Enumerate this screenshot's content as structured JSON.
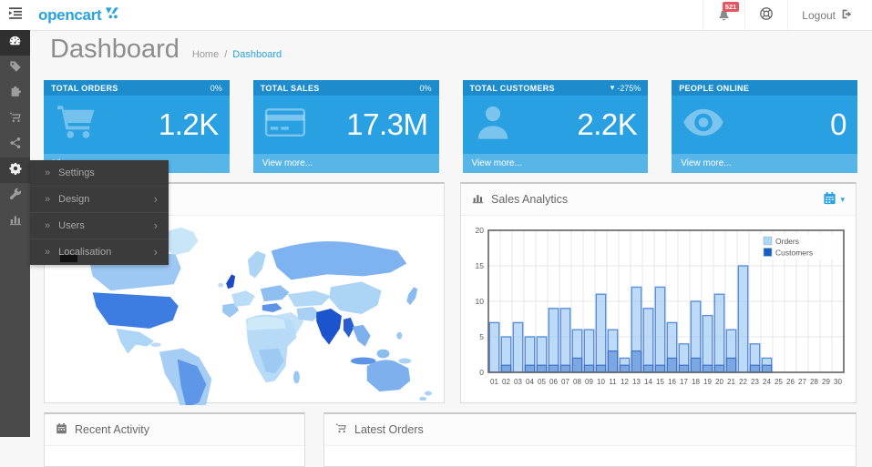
{
  "header": {
    "logo": "opencart",
    "notification_count": "521",
    "logout": "Logout"
  },
  "page": {
    "title": "Dashboard",
    "breadcrumb_home": "Home",
    "breadcrumb_sep": "/",
    "breadcrumb_current": "Dashboard"
  },
  "sidebar": {
    "items": [
      {
        "name": "dashboard",
        "icon": "dashboard-icon",
        "active": true
      },
      {
        "name": "catalog",
        "icon": "tag-icon"
      },
      {
        "name": "extensions",
        "icon": "puzzle-icon"
      },
      {
        "name": "sales",
        "icon": "cart-icon"
      },
      {
        "name": "marketing",
        "icon": "share-icon"
      },
      {
        "name": "system",
        "icon": "gear-icon",
        "expanded": true
      },
      {
        "name": "tools",
        "icon": "wrench-icon"
      },
      {
        "name": "reports",
        "icon": "bar-chart-icon"
      }
    ],
    "submenu": {
      "items": [
        {
          "label": "Settings",
          "has_children": false
        },
        {
          "label": "Design",
          "has_children": true
        },
        {
          "label": "Users",
          "has_children": true
        },
        {
          "label": "Localisation",
          "has_children": true
        }
      ]
    }
  },
  "tiles": [
    {
      "title": "TOTAL ORDERS",
      "percent": "0%",
      "value": "1.2K",
      "icon": "shopping-cart-icon",
      "view_more": "View more..."
    },
    {
      "title": "TOTAL SALES",
      "percent": "0%",
      "value": "17.3M",
      "icon": "credit-card-icon",
      "view_more": "View more..."
    },
    {
      "title": "TOTAL CUSTOMERS",
      "percent": "-275%",
      "trend": "down",
      "value": "2.2K",
      "icon": "user-icon",
      "view_more": "View more..."
    },
    {
      "title": "PEOPLE ONLINE",
      "percent": "",
      "value": "0",
      "icon": "eye-icon",
      "view_more": "View more..."
    }
  ],
  "panels": {
    "sales_analytics": {
      "title": "Sales Analytics"
    },
    "recent_activity": {
      "title": "Recent Activity"
    },
    "latest_orders": {
      "title": "Latest Orders"
    }
  },
  "chart_data": {
    "type": "bar",
    "title": "Sales Analytics",
    "x": [
      "01",
      "02",
      "03",
      "04",
      "05",
      "06",
      "07",
      "08",
      "09",
      "10",
      "11",
      "12",
      "13",
      "14",
      "15",
      "16",
      "17",
      "18",
      "19",
      "20",
      "21",
      "22",
      "23",
      "24",
      "25",
      "26",
      "27",
      "28",
      "29",
      "30"
    ],
    "series": [
      {
        "name": "Orders",
        "color": "#A9D8F4",
        "values": [
          7,
          5,
          7,
          5,
          5,
          9,
          9,
          6,
          6,
          11,
          6,
          2,
          12,
          9,
          12,
          7,
          4,
          10,
          8,
          11,
          6,
          15,
          4,
          2,
          0,
          0,
          0,
          0,
          0,
          0
        ]
      },
      {
        "name": "Customers",
        "color": "#1560C8",
        "values": [
          0,
          1,
          0,
          1,
          1,
          1,
          1,
          2,
          1,
          1,
          3,
          1,
          3,
          1,
          1,
          2,
          1,
          2,
          1,
          1,
          2,
          0,
          1,
          1,
          0,
          0,
          0,
          0,
          0,
          0
        ]
      }
    ],
    "ylim": [
      0,
      20
    ],
    "yticks": [
      0,
      5,
      10,
      15,
      20
    ],
    "grid": true,
    "legend_position": "top-right"
  },
  "colors": {
    "accent_blue": "#27A2E2",
    "tile_body": "#29A0E2",
    "tile_header": "#1D8CCC",
    "sidebar_bg": "#4A4A4A",
    "submenu_bg": "#3B3B3B",
    "badge_red": "#E4565F",
    "map_darkest_country": "#1B54CC",
    "chart_border": "#606060"
  }
}
